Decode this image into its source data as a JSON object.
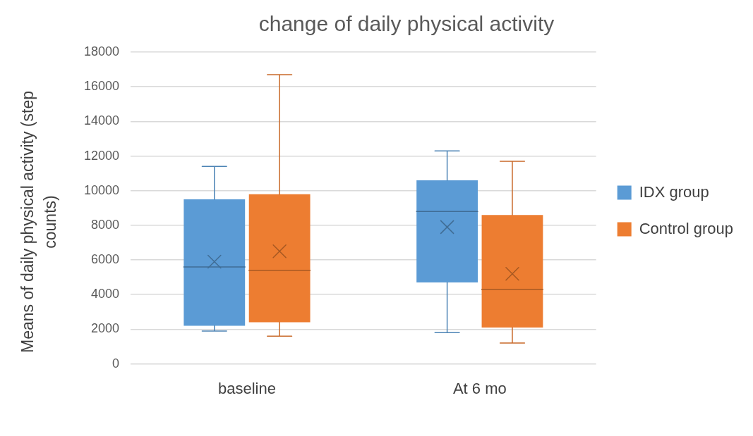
{
  "chart_data": {
    "type": "box",
    "title": "change of daily physical activity",
    "ylabel": "Means of daily physical activity (step counts)",
    "categories": [
      "baseline",
      "At 6 mo"
    ],
    "series": [
      {
        "name": "IDX group",
        "color": "#5b9bd5",
        "boxes": [
          {
            "low": 1900,
            "q1": 2200,
            "median": 5600,
            "q3": 9500,
            "high": 11400,
            "mean": 5900
          },
          {
            "low": 1800,
            "q1": 4700,
            "median": 8800,
            "q3": 10600,
            "high": 12300,
            "mean": 7900
          }
        ]
      },
      {
        "name": "Control group",
        "color": "#ed7d31",
        "boxes": [
          {
            "low": 1600,
            "q1": 2400,
            "median": 5400,
            "q3": 9800,
            "high": 16700,
            "mean": 6500
          },
          {
            "low": 1200,
            "q1": 2100,
            "median": 4300,
            "q3": 8600,
            "high": 11700,
            "mean": 5200
          }
        ]
      }
    ],
    "ylim": [
      0,
      18000
    ],
    "yticks": [
      0,
      2000,
      4000,
      6000,
      8000,
      10000,
      12000,
      14000,
      16000,
      18000
    ],
    "grid": "y",
    "legend": "right"
  }
}
